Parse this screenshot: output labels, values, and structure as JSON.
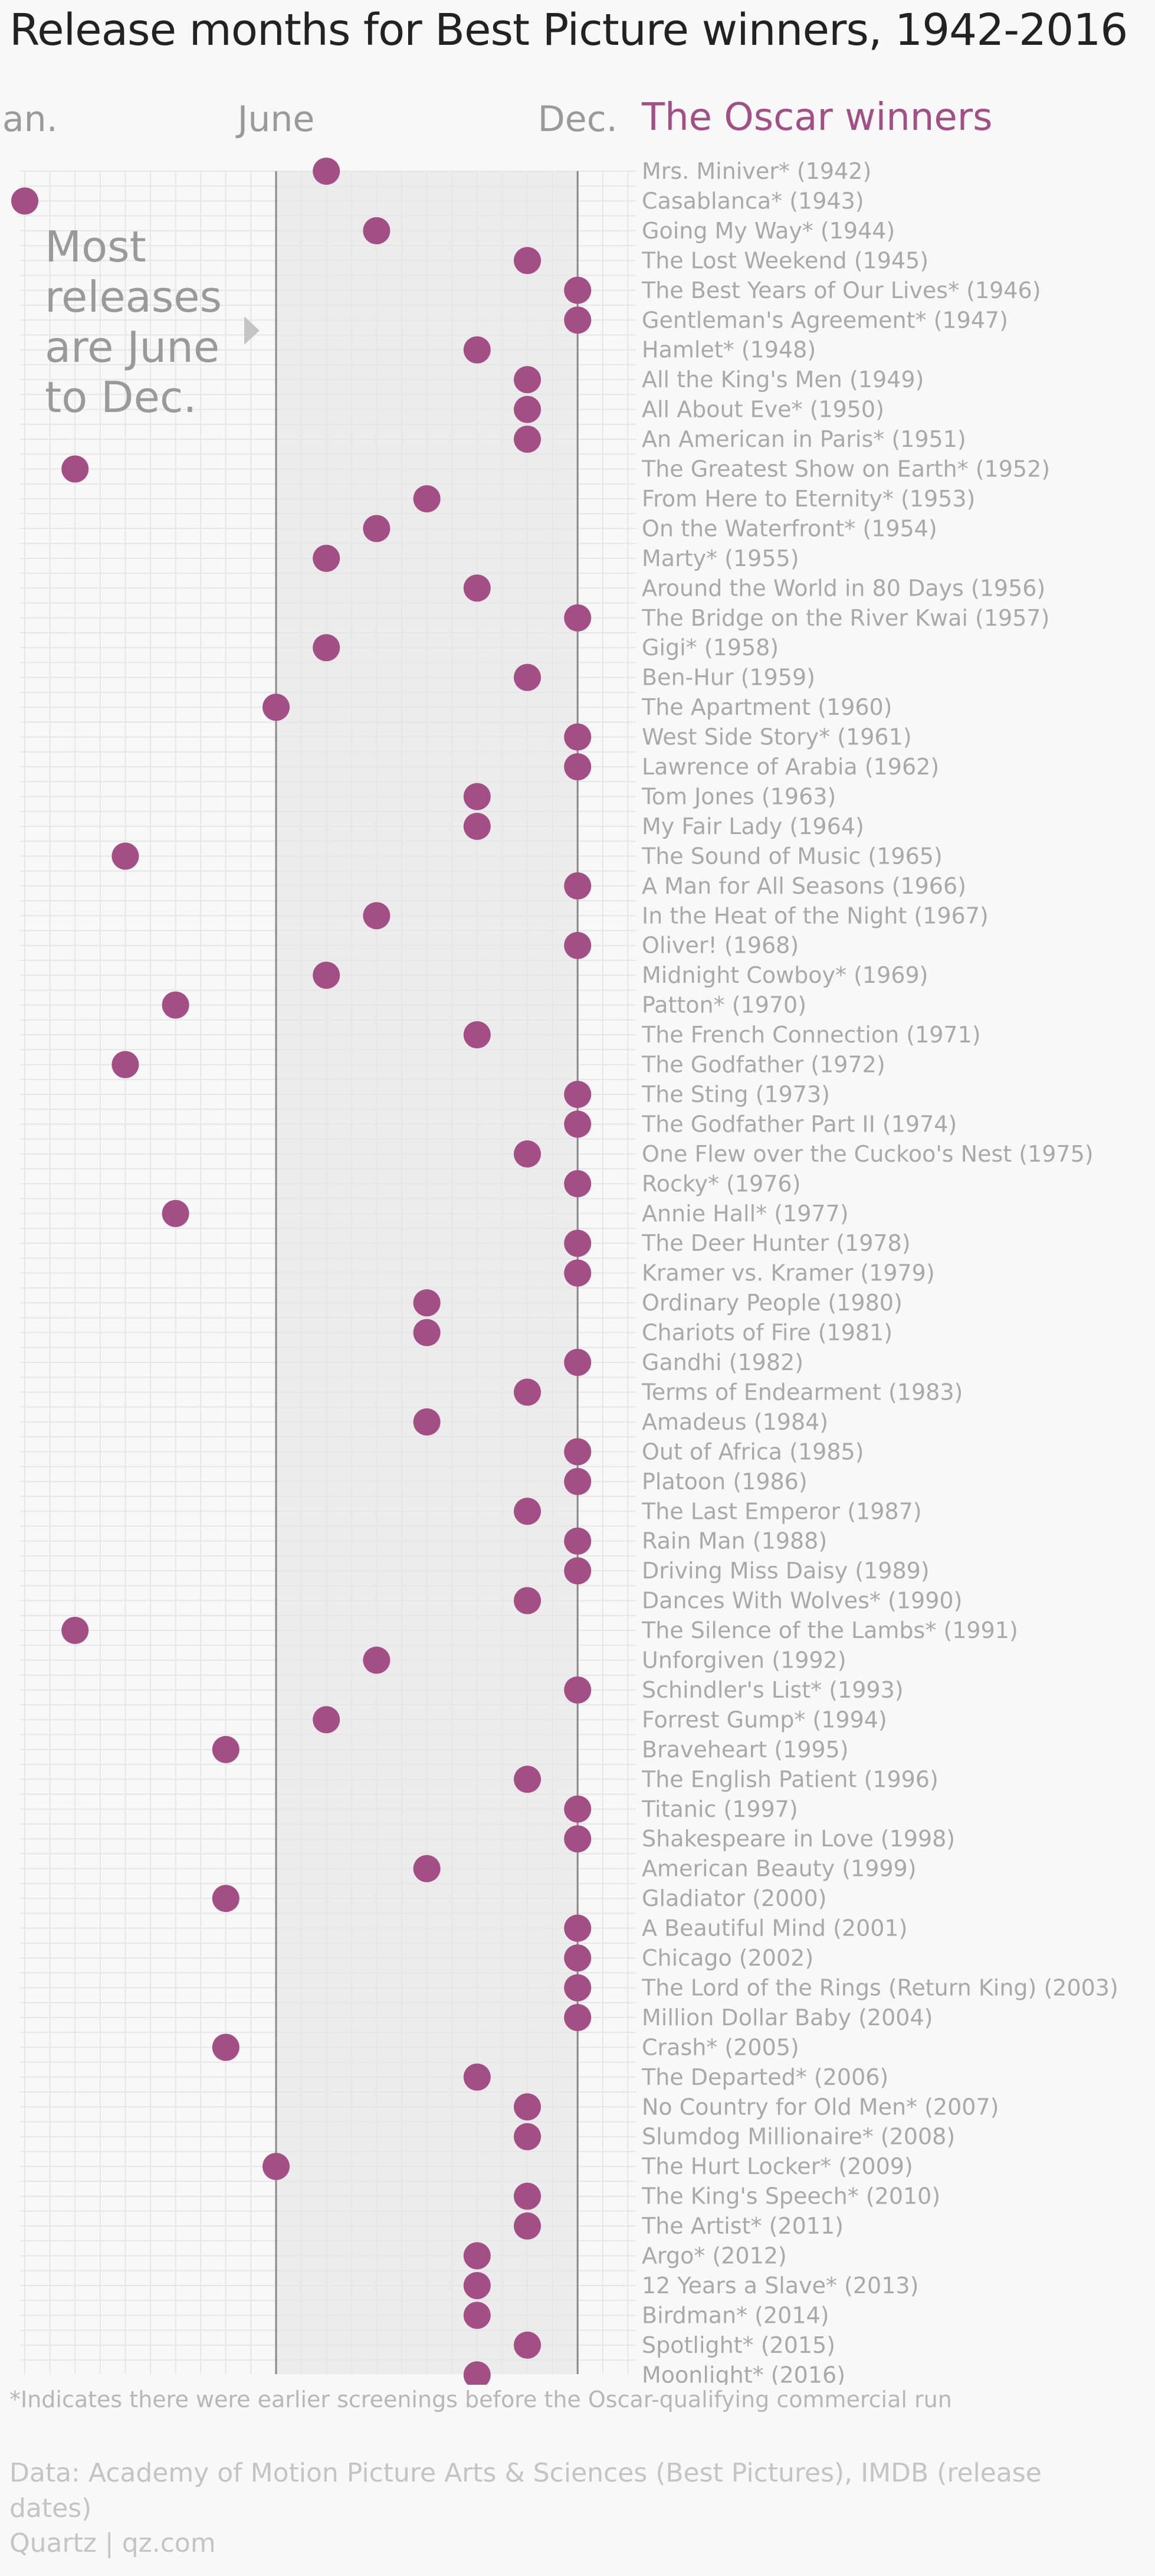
{
  "title": "Release months for Best Picture winners, 1942-2016",
  "chart_data": {
    "type": "scatter",
    "title": "Release months for Best Picture winners, 1942-2016",
    "x_axis_labels": [
      {
        "month": 1,
        "label": "Jan."
      },
      {
        "month": 6,
        "label": "June"
      },
      {
        "month": 12,
        "label": "Dec."
      }
    ],
    "xlim": [
      1,
      12
    ],
    "highlight_range": [
      6,
      12
    ],
    "legend_title": "The Oscar winners",
    "annotation": [
      "Most",
      "releases",
      "are June",
      "to Dec."
    ],
    "grid": true,
    "points": [
      {
        "label": "Mrs. Miniver* (1942)",
        "month": 7
      },
      {
        "label": "Casablanca* (1943)",
        "month": 1
      },
      {
        "label": "Going My Way* (1944)",
        "month": 8
      },
      {
        "label": "The Lost Weekend (1945)",
        "month": 11
      },
      {
        "label": "The Best Years of Our Lives* (1946)",
        "month": 12
      },
      {
        "label": "Gentleman's Agreement* (1947)",
        "month": 12
      },
      {
        "label": "Hamlet* (1948)",
        "month": 10
      },
      {
        "label": "All the King's Men (1949)",
        "month": 11
      },
      {
        "label": "All About Eve* (1950)",
        "month": 11
      },
      {
        "label": "An American in Paris* (1951)",
        "month": 11
      },
      {
        "label": "The Greatest Show on Earth* (1952)",
        "month": 2
      },
      {
        "label": "From Here to Eternity* (1953)",
        "month": 9
      },
      {
        "label": "On the Waterfront* (1954)",
        "month": 8
      },
      {
        "label": "Marty* (1955)",
        "month": 7
      },
      {
        "label": "Around the World in 80 Days (1956)",
        "month": 10
      },
      {
        "label": "The Bridge on the River Kwai (1957)",
        "month": 12
      },
      {
        "label": "Gigi* (1958)",
        "month": 7
      },
      {
        "label": "Ben-Hur (1959)",
        "month": 11
      },
      {
        "label": "The Apartment (1960)",
        "month": 6
      },
      {
        "label": "West Side Story* (1961)",
        "month": 12
      },
      {
        "label": "Lawrence of Arabia (1962)",
        "month": 12
      },
      {
        "label": "Tom Jones (1963)",
        "month": 10
      },
      {
        "label": "My Fair Lady (1964)",
        "month": 10
      },
      {
        "label": "The Sound of Music (1965)",
        "month": 3
      },
      {
        "label": "A Man for All Seasons (1966)",
        "month": 12
      },
      {
        "label": "In the Heat of the Night (1967)",
        "month": 8
      },
      {
        "label": "Oliver! (1968)",
        "month": 12
      },
      {
        "label": "Midnight Cowboy* (1969)",
        "month": 7
      },
      {
        "label": "Patton* (1970)",
        "month": 4
      },
      {
        "label": "The French Connection (1971)",
        "month": 10
      },
      {
        "label": "The Godfather (1972)",
        "month": 3
      },
      {
        "label": "The Sting (1973)",
        "month": 12
      },
      {
        "label": "The Godfather Part II (1974)",
        "month": 12
      },
      {
        "label": "One Flew over the Cuckoo's Nest (1975)",
        "month": 11
      },
      {
        "label": "Rocky* (1976)",
        "month": 12
      },
      {
        "label": "Annie Hall* (1977)",
        "month": 4
      },
      {
        "label": "The Deer Hunter (1978)",
        "month": 12
      },
      {
        "label": "Kramer vs. Kramer (1979)",
        "month": 12
      },
      {
        "label": "Ordinary People (1980)",
        "month": 9
      },
      {
        "label": "Chariots of Fire (1981)",
        "month": 9
      },
      {
        "label": "Gandhi (1982)",
        "month": 12
      },
      {
        "label": "Terms of Endearment (1983)",
        "month": 11
      },
      {
        "label": "Amadeus (1984)",
        "month": 9
      },
      {
        "label": "Out of Africa (1985)",
        "month": 12
      },
      {
        "label": "Platoon (1986)",
        "month": 12
      },
      {
        "label": "The Last Emperor (1987)",
        "month": 11
      },
      {
        "label": "Rain Man (1988)",
        "month": 12
      },
      {
        "label": "Driving Miss Daisy (1989)",
        "month": 12
      },
      {
        "label": "Dances With Wolves* (1990)",
        "month": 11
      },
      {
        "label": "The Silence of the Lambs* (1991)",
        "month": 2
      },
      {
        "label": "Unforgiven (1992)",
        "month": 8
      },
      {
        "label": "Schindler's List* (1993)",
        "month": 12
      },
      {
        "label": "Forrest Gump* (1994)",
        "month": 7
      },
      {
        "label": "Braveheart (1995)",
        "month": 5
      },
      {
        "label": "The English Patient (1996)",
        "month": 11
      },
      {
        "label": "Titanic (1997)",
        "month": 12
      },
      {
        "label": "Shakespeare in Love (1998)",
        "month": 12
      },
      {
        "label": "American Beauty (1999)",
        "month": 9
      },
      {
        "label": "Gladiator (2000)",
        "month": 5
      },
      {
        "label": "A Beautiful Mind (2001)",
        "month": 12
      },
      {
        "label": "Chicago (2002)",
        "month": 12
      },
      {
        "label": "The Lord of the Rings (Return King) (2003)",
        "month": 12
      },
      {
        "label": "Million Dollar Baby (2004)",
        "month": 12
      },
      {
        "label": "Crash* (2005)",
        "month": 5
      },
      {
        "label": "The Departed* (2006)",
        "month": 10
      },
      {
        "label": "No Country for Old Men* (2007)",
        "month": 11
      },
      {
        "label": "Slumdog Millionaire* (2008)",
        "month": 11
      },
      {
        "label": "The Hurt Locker* (2009)",
        "month": 6
      },
      {
        "label": "The King's Speech* (2010)",
        "month": 11
      },
      {
        "label": "The Artist* (2011)",
        "month": 11
      },
      {
        "label": "Argo* (2012)",
        "month": 10
      },
      {
        "label": "12 Years a Slave* (2013)",
        "month": 10
      },
      {
        "label": "Birdman* (2014)",
        "month": 10
      },
      {
        "label": "Spotlight* (2015)",
        "month": 11
      },
      {
        "label": "Moonlight* (2016)",
        "month": 10
      }
    ]
  },
  "colors": {
    "dot": "#a34f86",
    "legend_title": "#a34f86",
    "highlight_band": "#ececec",
    "grid": "#e6e6e6",
    "boundary_line": "#888888"
  },
  "footnote": "*Indicates there were earlier screenings before the Oscar-qualifying commercial run",
  "source": "Data: Academy of Motion Picture Arts & Sciences (Best Pictures), IMDB (release dates)",
  "brand": "Quartz | qz.com"
}
